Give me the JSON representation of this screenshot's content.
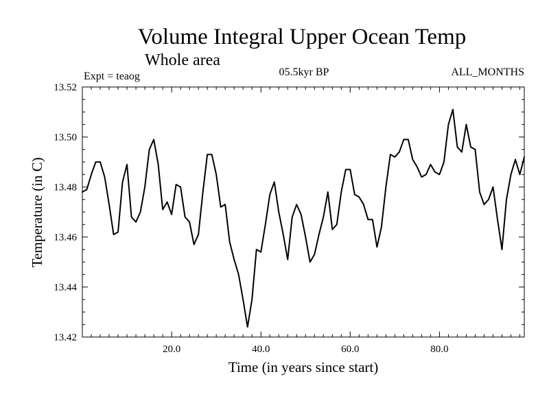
{
  "chart_data": {
    "type": "line",
    "title": "Volume Integral Upper Ocean Temp",
    "subtitle": "Whole area",
    "experiment_label": "Expt = teaog",
    "period_label": "05.5kyr BP",
    "months_label": "ALL_MONTHS",
    "xlabel": "Time (in years since start)",
    "ylabel": "Temperature (in C)",
    "xlim": [
      0,
      99
    ],
    "ylim": [
      13.42,
      13.52
    ],
    "xticks": [
      20,
      40,
      60,
      80
    ],
    "xtick_labels": [
      "20.0",
      "40.0",
      "60.0",
      "80.0"
    ],
    "yticks": [
      13.42,
      13.44,
      13.46,
      13.48,
      13.5,
      13.52
    ],
    "ytick_labels": [
      "13.42",
      "13.44",
      "13.46",
      "13.48",
      "13.50",
      "13.52"
    ],
    "grid": false,
    "series": [
      {
        "name": "Volume Integral Upper Ocean Temp",
        "x": [
          0,
          1,
          2,
          3,
          4,
          5,
          6,
          7,
          8,
          9,
          10,
          11,
          12,
          13,
          14,
          15,
          16,
          17,
          18,
          19,
          20,
          21,
          22,
          23,
          24,
          25,
          26,
          27,
          28,
          29,
          30,
          31,
          32,
          33,
          34,
          35,
          36,
          37,
          38,
          39,
          40,
          41,
          42,
          43,
          44,
          45,
          46,
          47,
          48,
          49,
          50,
          51,
          52,
          53,
          54,
          55,
          56,
          57,
          58,
          59,
          60,
          61,
          62,
          63,
          64,
          65,
          66,
          67,
          68,
          69,
          70,
          71,
          72,
          73,
          74,
          75,
          76,
          77,
          78,
          79,
          80,
          81,
          82,
          83,
          84,
          85,
          86,
          87,
          88,
          89,
          90,
          91,
          92,
          93,
          94,
          95,
          96,
          97,
          98,
          99
        ],
        "y": [
          13.478,
          13.479,
          13.485,
          13.49,
          13.49,
          13.484,
          13.473,
          13.461,
          13.462,
          13.482,
          13.489,
          13.468,
          13.466,
          13.47,
          13.48,
          13.495,
          13.499,
          13.489,
          13.471,
          13.474,
          13.469,
          13.481,
          13.48,
          13.468,
          13.466,
          13.457,
          13.461,
          13.478,
          13.493,
          13.493,
          13.485,
          13.472,
          13.473,
          13.458,
          13.451,
          13.445,
          13.435,
          13.424,
          13.435,
          13.455,
          13.454,
          13.465,
          13.477,
          13.482,
          13.47,
          13.461,
          13.451,
          13.468,
          13.473,
          13.469,
          13.46,
          13.45,
          13.453,
          13.461,
          13.468,
          13.478,
          13.463,
          13.465,
          13.478,
          13.487,
          13.487,
          13.477,
          13.476,
          13.473,
          13.467,
          13.467,
          13.456,
          13.464,
          13.48,
          13.493,
          13.492,
          13.494,
          13.499,
          13.499,
          13.491,
          13.488,
          13.484,
          13.485,
          13.489,
          13.486,
          13.485,
          13.49,
          13.505,
          13.511,
          13.496,
          13.494,
          13.505,
          13.496,
          13.495,
          13.478,
          13.473,
          13.475,
          13.48,
          13.467,
          13.455,
          13.475,
          13.485,
          13.491,
          13.485,
          13.492
        ]
      }
    ]
  }
}
